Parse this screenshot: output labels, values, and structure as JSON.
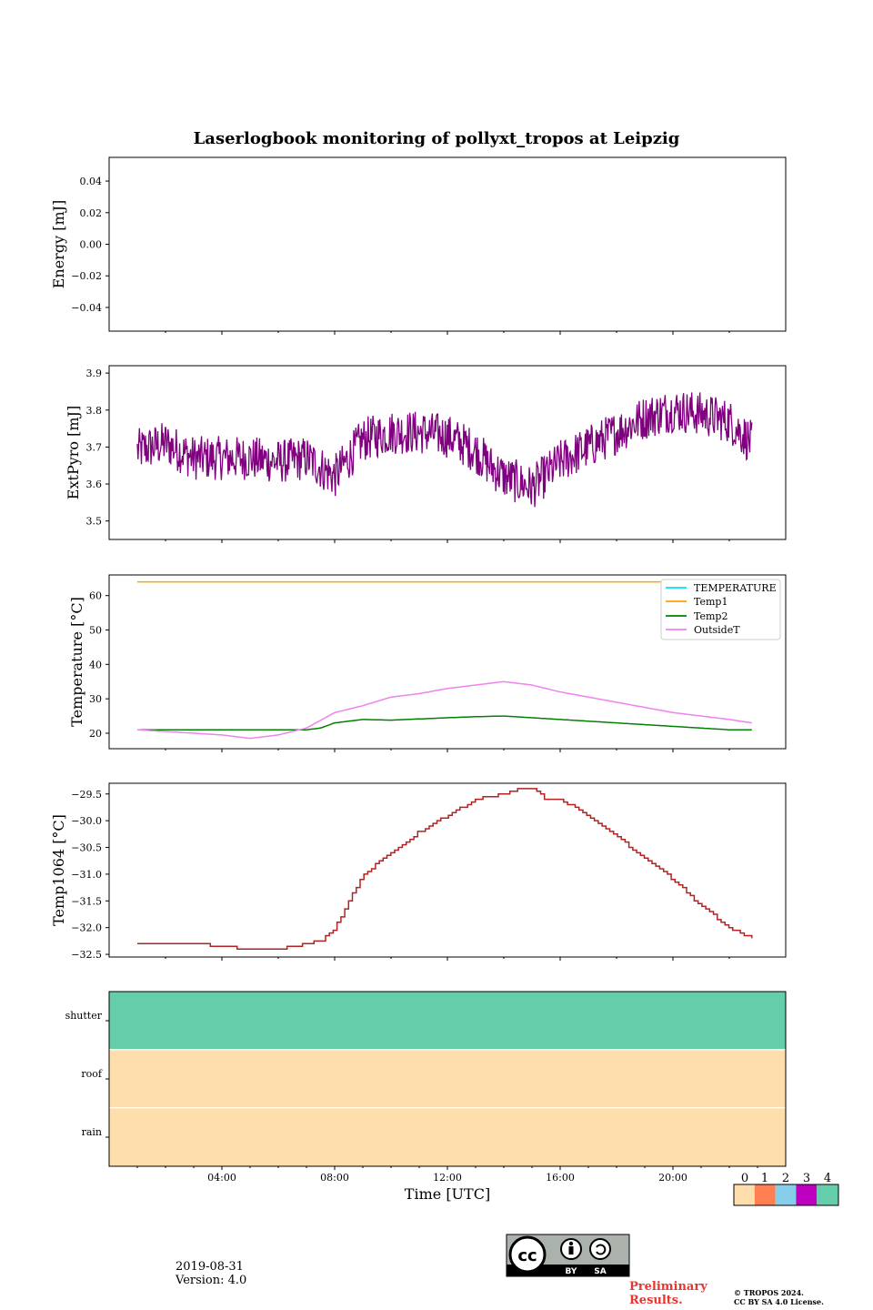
{
  "figure": {
    "title": "Laserlogbook monitoring of pollyxt_tropos at Leipzig",
    "xlabel": "Time [UTC]",
    "date": "2019-08-31",
    "version": "Version: 4.0",
    "preliminary_line1": "Preliminary",
    "preliminary_line2": "Results.",
    "copyright_line1": "© TROPOS 2024.",
    "copyright_line2": "CC BY SA 4.0 License.",
    "license_badge": {
      "main": "cc",
      "by": "BY",
      "sa": "SA"
    }
  },
  "chart_data": [
    {
      "type": "line",
      "name": "energy",
      "ylabel": "Energy [mJ]",
      "ylim": [
        -0.055,
        0.055
      ],
      "yticks": [
        0.04,
        0.02,
        0.0,
        -0.02,
        -0.04
      ],
      "ytick_labels": [
        "0.04",
        "0.02",
        "0.00",
        "−0.02",
        "−0.04"
      ],
      "series": []
    },
    {
      "type": "line",
      "name": "extpyro",
      "ylabel": "ExtPyro [mJ]",
      "ylim": [
        3.45,
        3.92
      ],
      "yticks": [
        3.9,
        3.8,
        3.7,
        3.6,
        3.5
      ],
      "ytick_labels": [
        "3.9",
        "3.8",
        "3.7",
        "3.6",
        "3.5"
      ],
      "series": [
        {
          "name": "ExtPyro",
          "color": "#800080",
          "x_hours": [
            1.0,
            2.0,
            3.0,
            4.0,
            5.0,
            6.0,
            7.0,
            8.0,
            9.0,
            10.0,
            11.0,
            12.0,
            13.0,
            13.5,
            14.0,
            15.0,
            16.0,
            17.0,
            18.0,
            19.0,
            20.0,
            21.0,
            22.0,
            22.8
          ],
          "y_mean": [
            3.69,
            3.71,
            3.67,
            3.67,
            3.67,
            3.66,
            3.67,
            3.62,
            3.72,
            3.74,
            3.74,
            3.73,
            3.69,
            3.65,
            3.62,
            3.59,
            3.66,
            3.7,
            3.74,
            3.78,
            3.8,
            3.79,
            3.77,
            3.71
          ],
          "noise_amplitude": 0.06
        }
      ]
    },
    {
      "type": "line",
      "name": "temperature",
      "ylabel": "Temperature [°C]",
      "ylim": [
        15.5,
        66
      ],
      "yticks": [
        60,
        50,
        40,
        30,
        20
      ],
      "ytick_labels": [
        "60",
        "50",
        "40",
        "30",
        "20"
      ],
      "legend": {
        "placement": "top-right",
        "entries": [
          "TEMPERATURE",
          "Temp1",
          "Temp2",
          "OutsideT"
        ]
      },
      "series": [
        {
          "name": "TEMPERATURE",
          "color": "#00e5ee",
          "x_hours": [],
          "values": []
        },
        {
          "name": "Temp1",
          "color": "#ffa500",
          "x_hours": [
            1.0,
            22.8
          ],
          "values": [
            64,
            64
          ]
        },
        {
          "name": "Temp2",
          "color": "#008000",
          "x_hours": [
            1.0,
            3.0,
            5.0,
            7.0,
            7.5,
            8.0,
            9.0,
            10.0,
            12.0,
            13.0,
            14.0,
            15.0,
            16.0,
            18.0,
            20.0,
            22.0,
            22.8
          ],
          "values": [
            21,
            21,
            21,
            21,
            21.5,
            23.0,
            24.0,
            23.8,
            24.5,
            24.8,
            25.0,
            24.5,
            24.0,
            23.0,
            22.0,
            21.0,
            21.0
          ]
        },
        {
          "name": "OutsideT",
          "color": "#ee82ee",
          "x_hours": [
            1.0,
            2.0,
            3.0,
            4.0,
            5.0,
            6.0,
            7.0,
            8.0,
            9.0,
            10.0,
            11.0,
            12.0,
            13.0,
            14.0,
            15.0,
            16.0,
            17.0,
            18.0,
            19.0,
            20.0,
            21.0,
            22.0,
            22.8
          ],
          "values": [
            21,
            20.5,
            20,
            19.5,
            18.5,
            19.5,
            21.5,
            26,
            28,
            30.5,
            31.5,
            33,
            34,
            35,
            34,
            32,
            30.5,
            29,
            27.5,
            26,
            25,
            24,
            23
          ]
        }
      ]
    },
    {
      "type": "line",
      "name": "temp1064",
      "ylabel": "Temp1064 [°C]",
      "ylim": [
        -32.55,
        -29.3
      ],
      "yticks": [
        -29.5,
        -30.0,
        -30.5,
        -31.0,
        -31.5,
        -32.0,
        -32.5
      ],
      "ytick_labels": [
        "−29.5",
        "−30.0",
        "−30.5",
        "−31.0",
        "−31.5",
        "−32.0",
        "−32.5"
      ],
      "series": [
        {
          "name": "Temp1064",
          "color": "#b22222",
          "x_hours": [
            1.0,
            2.0,
            3.0,
            4.0,
            5.0,
            6.0,
            7.0,
            7.5,
            8.0,
            8.5,
            9.0,
            10.0,
            11.0,
            12.0,
            13.0,
            14.0,
            14.5,
            15.0,
            15.5,
            16.0,
            17.0,
            18.0,
            19.0,
            20.0,
            21.0,
            22.0,
            22.8
          ],
          "values": [
            -32.3,
            -32.3,
            -32.3,
            -32.35,
            -32.4,
            -32.4,
            -32.3,
            -32.25,
            -32.0,
            -31.5,
            -31.0,
            -30.6,
            -30.2,
            -29.9,
            -29.6,
            -29.5,
            -29.4,
            -29.4,
            -29.6,
            -29.6,
            -29.9,
            -30.3,
            -30.7,
            -31.1,
            -31.6,
            -32.0,
            -32.2
          ]
        }
      ]
    },
    {
      "type": "heatmap",
      "name": "status",
      "rows": [
        "shutter",
        "roof",
        "rain"
      ],
      "row_values": [
        4,
        0,
        0
      ],
      "colorbar": {
        "tick_labels": [
          "0",
          "1",
          "2",
          "3",
          "4"
        ],
        "colors": [
          "#ffdead",
          "#ff7f50",
          "#87ceeb",
          "#c000c0",
          "#66cdaa"
        ]
      }
    }
  ],
  "xaxis": {
    "range_hours": [
      0,
      24
    ],
    "tick_hours": [
      4,
      8,
      12,
      16,
      20
    ],
    "tick_labels": [
      "04:00",
      "08:00",
      "12:00",
      "16:00",
      "20:00"
    ]
  }
}
